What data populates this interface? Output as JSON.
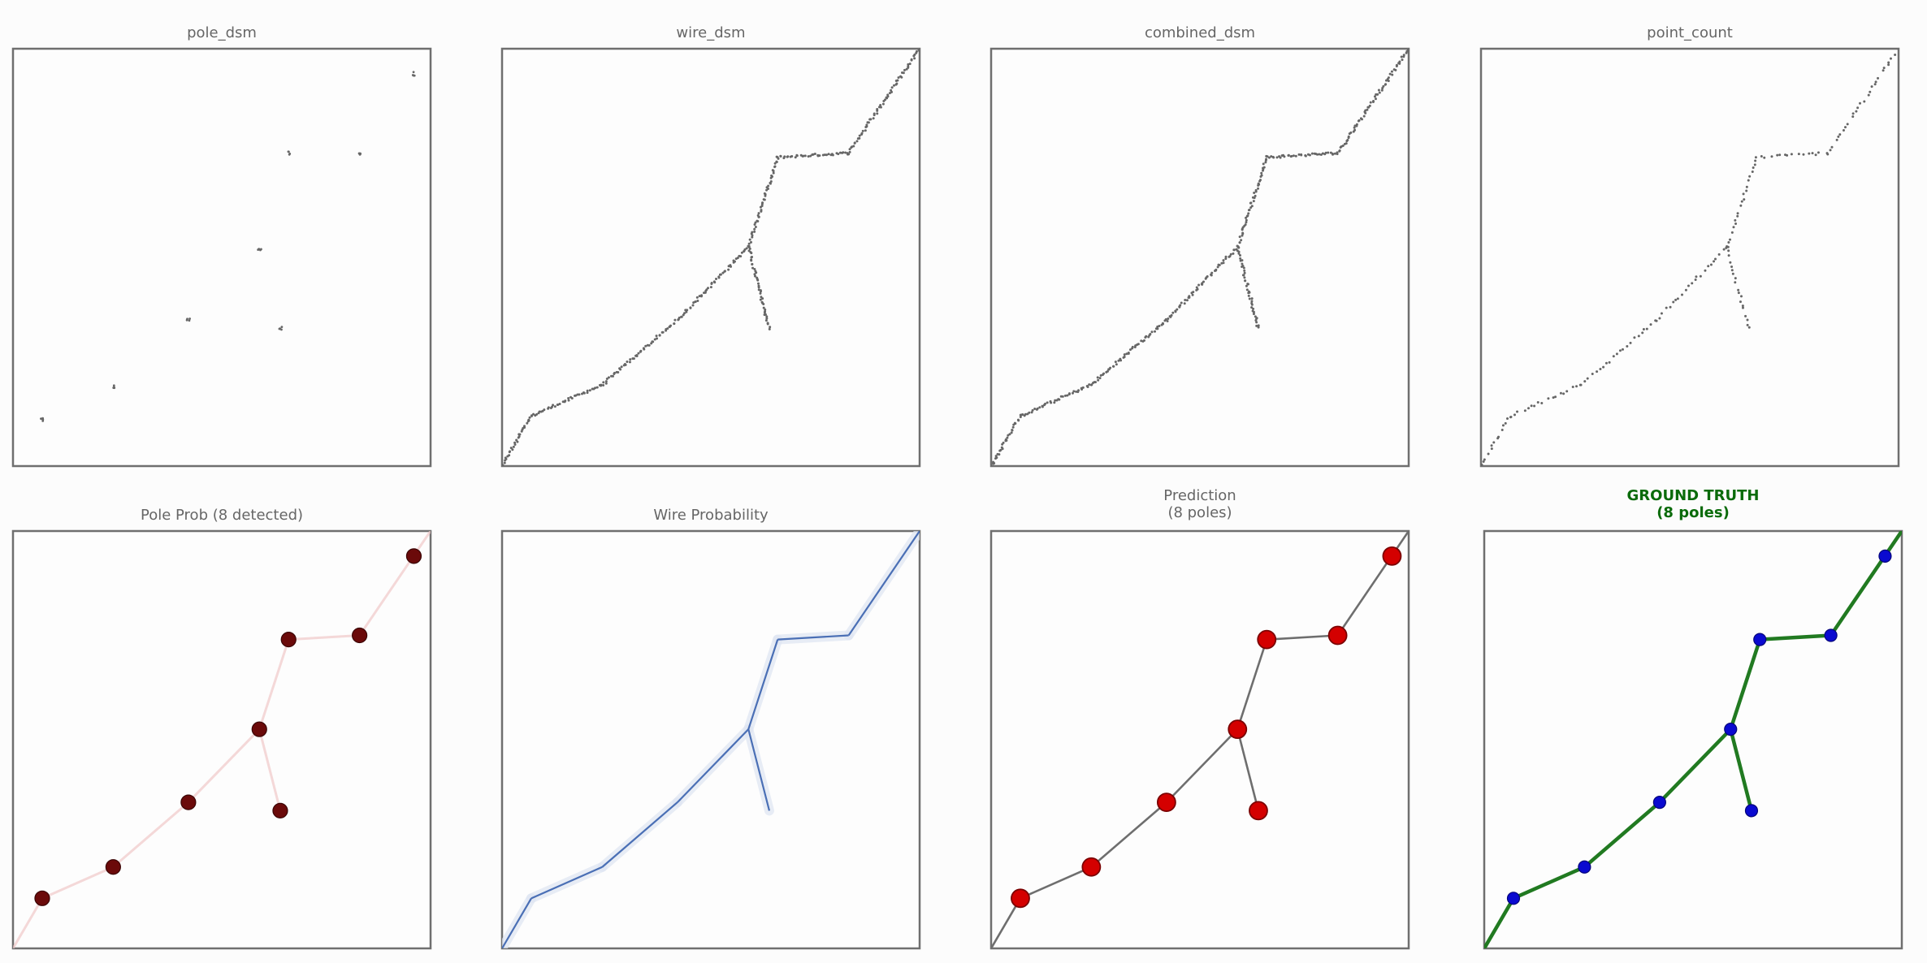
{
  "chart_data": [
    {
      "type": "scatter",
      "title": "pole_dsm",
      "xlim": [
        0,
        100
      ],
      "ylim": [
        0,
        100
      ],
      "grid": false,
      "mode": "sparse-points",
      "points": [
        [
          7,
          11
        ],
        [
          24,
          19
        ],
        [
          42,
          35
        ],
        [
          64,
          33
        ],
        [
          59,
          52
        ],
        [
          66,
          75
        ],
        [
          83,
          75
        ],
        [
          96,
          94
        ]
      ]
    },
    {
      "type": "scatter",
      "title": "wire_dsm",
      "xlim": [
        0,
        100
      ],
      "ylim": [
        0,
        100
      ],
      "grid": false,
      "mode": "dense-edges"
    },
    {
      "type": "scatter",
      "title": "combined_dsm",
      "xlim": [
        0,
        100
      ],
      "ylim": [
        0,
        100
      ],
      "grid": false,
      "mode": "dense-edges"
    },
    {
      "type": "scatter",
      "title": "point_count",
      "xlim": [
        0,
        100
      ],
      "ylim": [
        0,
        100
      ],
      "grid": false,
      "mode": "sparse-edges"
    },
    {
      "type": "scatter",
      "title": "Pole Prob (8 detected)",
      "xlim": [
        0,
        100
      ],
      "ylim": [
        0,
        100
      ],
      "grid": false,
      "mode": "pole-probability"
    },
    {
      "type": "line",
      "title": "Wire Probability",
      "xlim": [
        0,
        100
      ],
      "ylim": [
        0,
        100
      ],
      "grid": false,
      "mode": "wire-probability"
    },
    {
      "type": "line",
      "title": "Prediction\n(8 poles)",
      "xlim": [
        0,
        100
      ],
      "ylim": [
        0,
        100
      ],
      "grid": false,
      "mode": "prediction"
    },
    {
      "type": "line",
      "title": "GROUND TRUTH\n(8 poles)",
      "xlim": [
        0,
        100
      ],
      "ylim": [
        0,
        100
      ],
      "grid": false,
      "mode": "ground-truth"
    }
  ],
  "network": {
    "poles": [
      [
        7,
        12
      ],
      [
        24,
        19.5
      ],
      [
        42,
        35
      ],
      [
        64,
        33
      ],
      [
        59,
        52.5
      ],
      [
        66,
        74
      ],
      [
        83,
        75
      ],
      [
        96,
        94
      ]
    ],
    "edges": [
      [
        [
          0,
          0
        ],
        [
          7,
          12
        ]
      ],
      [
        [
          7,
          12
        ],
        [
          24,
          19.5
        ]
      ],
      [
        [
          24,
          19.5
        ],
        [
          42,
          35
        ]
      ],
      [
        [
          42,
          35
        ],
        [
          59,
          52.5
        ]
      ],
      [
        [
          59,
          52.5
        ],
        [
          64,
          33
        ]
      ],
      [
        [
          59,
          52.5
        ],
        [
          66,
          74
        ]
      ],
      [
        [
          66,
          74
        ],
        [
          83,
          75
        ]
      ],
      [
        [
          83,
          75
        ],
        [
          100,
          100
        ]
      ]
    ]
  },
  "colors": {
    "frame": "#6f6f6f",
    "title": "#666666",
    "gt_title": "#0a6b0a",
    "dsm_points": "#666666",
    "pole_prob_marker": "#6b0a0a",
    "pole_prob_halo": "#f0c8c8",
    "wire_line": "#4a6fb5",
    "wire_glow": "#dfe5f2",
    "pred_marker": "#d40000",
    "pred_marker_edge": "#7a0000",
    "pred_line": "#6e6e6e",
    "gt_line": "#217a21",
    "gt_marker": "#0a0ad0"
  }
}
